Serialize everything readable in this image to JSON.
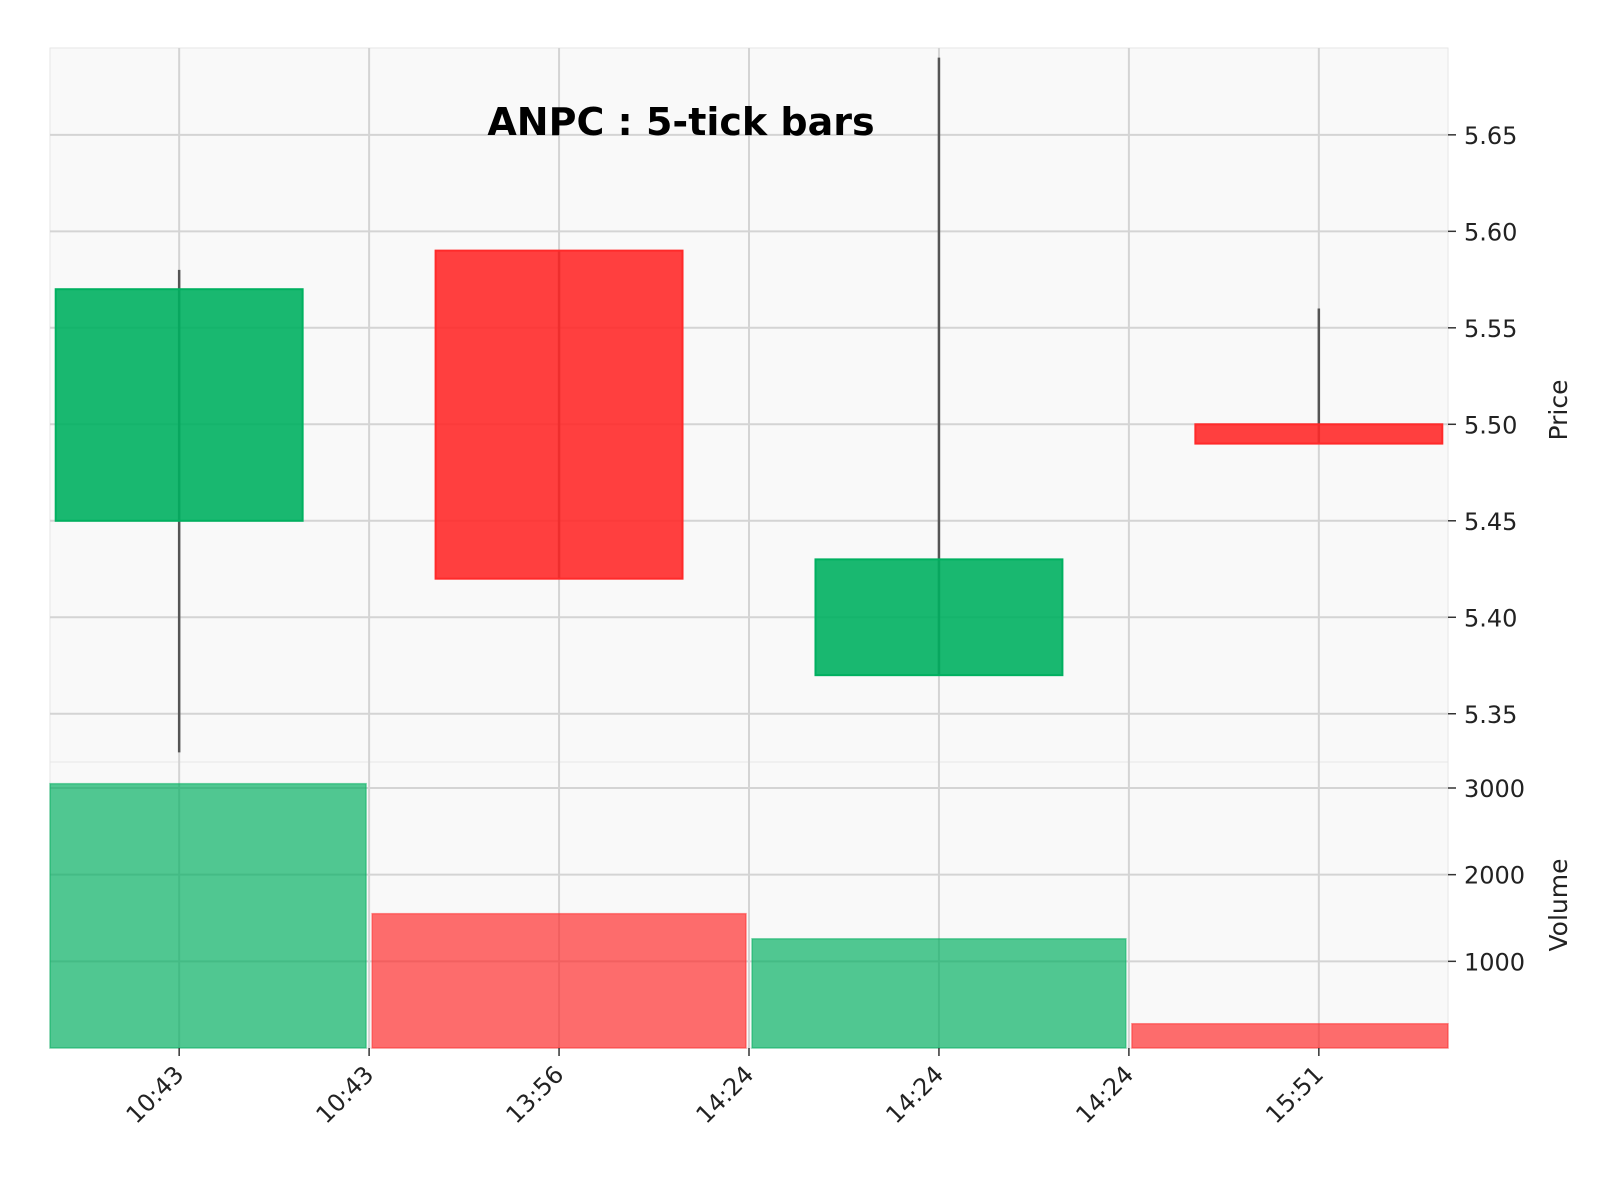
{
  "chart_data": {
    "type": "candlestick",
    "title": "ANPC : 5-tick bars",
    "categories": [
      "10:43",
      "10:43",
      "13:56",
      "14:24",
      "14:24",
      "14:24",
      "15:51"
    ],
    "candles": [
      {
        "open": 5.45,
        "high": 5.58,
        "low": 5.33,
        "close": 5.57,
        "volume": 3050,
        "direction": "up"
      },
      {
        "open": 5.59,
        "high": 5.59,
        "low": 5.42,
        "close": 5.42,
        "volume": 1550,
        "direction": "down"
      },
      {
        "open": 5.37,
        "high": 5.69,
        "low": 5.37,
        "close": 5.43,
        "volume": 1260,
        "direction": "up"
      },
      {
        "open": 5.5,
        "high": 5.56,
        "low": 5.49,
        "close": 5.49,
        "volume": 280,
        "direction": "down"
      }
    ],
    "price_axis": {
      "label": "Price",
      "ticks": [
        "5.35",
        "5.40",
        "5.45",
        "5.50",
        "5.55",
        "5.60",
        "5.65"
      ],
      "ylim": [
        5.325,
        5.695
      ]
    },
    "volume_axis": {
      "label": "Volume",
      "ticks": [
        "1000",
        "2000",
        "3000"
      ],
      "ylim": [
        0,
        3300
      ]
    },
    "grid": true,
    "colors": {
      "up": "#00b060",
      "down": "#ff2a2a",
      "background": "#f9f9f9",
      "grid": "#d4d4d4",
      "wick": "#555555"
    }
  }
}
